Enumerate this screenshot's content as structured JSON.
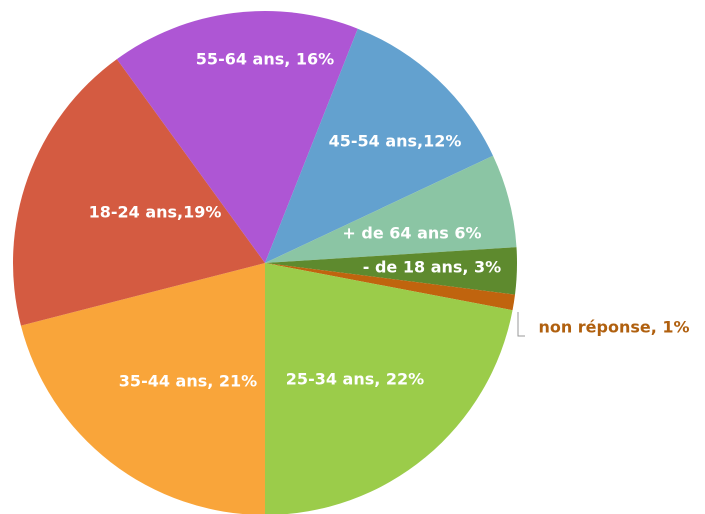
{
  "chart_data": {
    "type": "pie",
    "values": [
      21,
      19,
      16,
      12,
      6,
      3,
      1,
      22
    ],
    "value_labels": [
      "35-44 ans, 21%",
      "18-24 ans,19%",
      "55-64 ans, 16%",
      "45-54 ans,12%",
      "+ de 64 ans 6%",
      "- de 18 ans, 3%",
      "non réponse, 1%",
      "25-34 ans, 22%"
    ],
    "colors": [
      "#f9a53a",
      "#d45b41",
      "#ae56d4",
      "#63a1cf",
      "#8bc5a4",
      "#5e8a2e",
      "#c0640e",
      "#9bcc4a"
    ]
  }
}
